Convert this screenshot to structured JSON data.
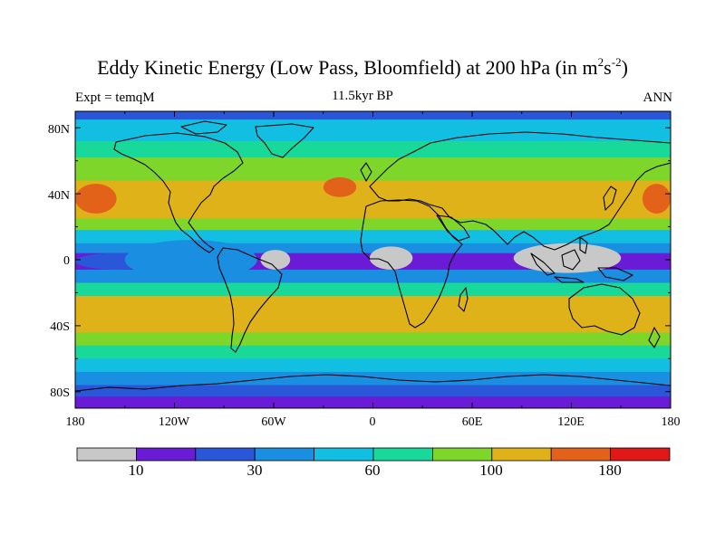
{
  "title_main": "Eddy Kinetic Energy (Low Pass, Bloomfield) at 200 hPa (in m",
  "title_sup1": "2",
  "title_mid": "s",
  "title_sup2": "-2",
  "title_end": ")",
  "subtitle_left": "Expt = temqM",
  "subtitle_center": "11.5kyr BP",
  "subtitle_right": "ANN",
  "colors": [
    "#c8c8c8",
    "#6a1bd6",
    "#2a56d8",
    "#1a8ee0",
    "#12bfe3",
    "#19d99a",
    "#7fd62a",
    "#e0b21a",
    "#e2621a",
    "#e01818"
  ],
  "colorbar_labels": [
    "10",
    "30",
    "60",
    "100",
    "180"
  ],
  "map_labels": {
    "lat": [
      "80N",
      "40N",
      "0",
      "40S",
      "80S"
    ],
    "lon": [
      "180",
      "120W",
      "60W",
      "0",
      "60E",
      "120E",
      "180"
    ]
  },
  "chart_data": {
    "type": "heatmap",
    "title": "Eddy Kinetic Energy (Low Pass, Bloomfield) at 200 hPa (in m2s-2)",
    "field": "eddy kinetic energy",
    "units": "m2 s-2",
    "pressure_level_hPa": 200,
    "experiment": "temqM",
    "period": "11.5kyr BP",
    "season": "ANN",
    "lon_range": [
      -180,
      180
    ],
    "lat_range": [
      -90,
      90
    ],
    "colorbar_labels": [
      "10",
      "30",
      "60",
      "100",
      "180"
    ],
    "zonal_bands": [
      {
        "lat_min": 85,
        "lat_max": 90,
        "value": 20
      },
      {
        "lat_min": 72,
        "lat_max": 85,
        "value": 45
      },
      {
        "lat_min": 62,
        "lat_max": 72,
        "value": 70
      },
      {
        "lat_min": 48,
        "lat_max": 62,
        "value": 95
      },
      {
        "lat_min": 25,
        "lat_max": 48,
        "value": 120
      },
      {
        "lat_min": 18,
        "lat_max": 25,
        "value": 80
      },
      {
        "lat_min": 10,
        "lat_max": 18,
        "value": 55
      },
      {
        "lat_min": 4,
        "lat_max": 10,
        "value": 35
      },
      {
        "lat_min": -6,
        "lat_max": 4,
        "value": 15
      },
      {
        "lat_min": -14,
        "lat_max": -6,
        "value": 40
      },
      {
        "lat_min": -22,
        "lat_max": -14,
        "value": 70
      },
      {
        "lat_min": -44,
        "lat_max": -22,
        "value": 110
      },
      {
        "lat_min": -52,
        "lat_max": -44,
        "value": 90
      },
      {
        "lat_min": -60,
        "lat_max": -52,
        "value": 65
      },
      {
        "lat_min": -68,
        "lat_max": -60,
        "value": 45
      },
      {
        "lat_min": -76,
        "lat_max": -68,
        "value": 30
      },
      {
        "lat_min": -83,
        "lat_max": -76,
        "value": 20
      },
      {
        "lat_min": -90,
        "lat_max": -83,
        "value": 10
      }
    ],
    "features": [
      {
        "desc": "North Pacific jet maximum (west)",
        "lon_min": -180,
        "lon_max": -155,
        "lat_min": 28,
        "lat_max": 46,
        "value": 150
      },
      {
        "desc": "North Pacific jet maximum (east)",
        "lon_min": 163,
        "lon_max": 180,
        "lat_min": 28,
        "lat_max": 46,
        "value": 150
      },
      {
        "desc": "North Atlantic maximum",
        "lon_min": -30,
        "lon_max": -10,
        "lat_min": 38,
        "lat_max": 50,
        "value": 150
      },
      {
        "desc": "Tropical Pacific minimum",
        "lon_min": -180,
        "lon_max": -130,
        "lat_min": -6,
        "lat_max": 4,
        "value": 25
      },
      {
        "desc": "South America minimum",
        "lon_min": -68,
        "lon_max": -50,
        "lat_min": -6,
        "lat_max": 6,
        "value": 8
      },
      {
        "desc": "Central Africa minimum",
        "lon_min": -2,
        "lon_max": 24,
        "lat_min": -6,
        "lat_max": 8,
        "value": 8
      },
      {
        "desc": "Maritime Continent minimum",
        "lon_min": 85,
        "lon_max": 150,
        "lat_min": -8,
        "lat_max": 10,
        "value": 8
      },
      {
        "desc": "Eastern Pacific cool band",
        "lon_min": -150,
        "lon_max": -70,
        "lat_min": -12,
        "lat_max": 12,
        "value": 40
      }
    ]
  }
}
